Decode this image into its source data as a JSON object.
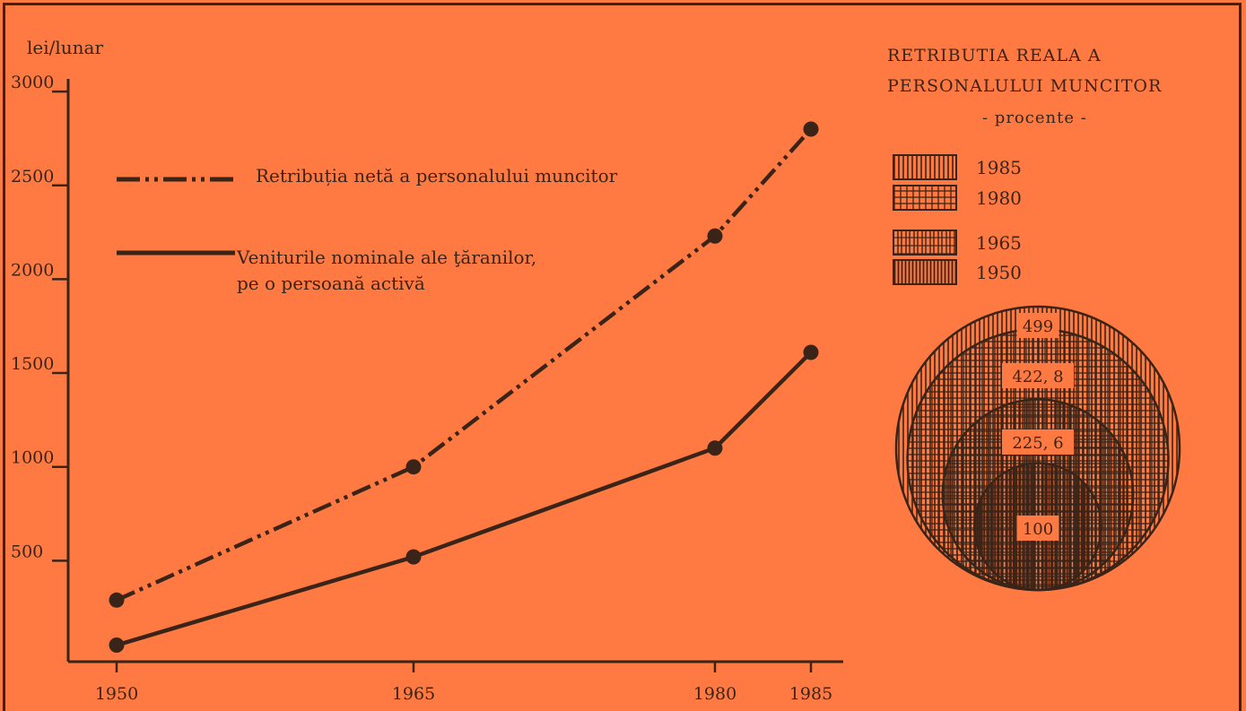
{
  "chart_data": [
    {
      "type": "line",
      "ylabel": "lei/lunar",
      "x": [
        1950,
        1965,
        1980,
        1985
      ],
      "x_tick_labels": [
        "1950",
        "1965",
        "1980",
        "1985"
      ],
      "y_ticks": [
        500,
        1000,
        1500,
        2000,
        2500,
        3000
      ],
      "y_tick_labels": [
        "500",
        "1000",
        "1500",
        "2000",
        "2500",
        "3000"
      ],
      "xlim": [
        1950,
        1985
      ],
      "ylim": [
        0,
        3000
      ],
      "grid": false,
      "legend_position": "top-left",
      "series": [
        {
          "name": "Retribuția netă a personalului muncitor",
          "style": "dash-dot",
          "values": [
            290,
            1000,
            2230,
            2800
          ]
        },
        {
          "name_lines": [
            "Veniturile nominale ale ţăranilor,",
            "pe o persoană activă"
          ],
          "style": "solid",
          "values": [
            50,
            520,
            1100,
            1610
          ]
        }
      ],
      "line_color": "#3a2418"
    },
    {
      "type": "nested-circles",
      "title_lines": [
        "RETRIBUTIA REALA A",
        "PERSONALULUI MUNCITOR"
      ],
      "subtitle": "- procente -",
      "legend_position": "top",
      "items": [
        {
          "year": "1985",
          "value": 499,
          "label": "499"
        },
        {
          "year": "1980",
          "value": 422.8,
          "label": "422, 8"
        },
        {
          "year": "1965",
          "value": 225.6,
          "label": "225, 6"
        },
        {
          "year": "1950",
          "value": 100,
          "label": "100"
        }
      ]
    }
  ]
}
